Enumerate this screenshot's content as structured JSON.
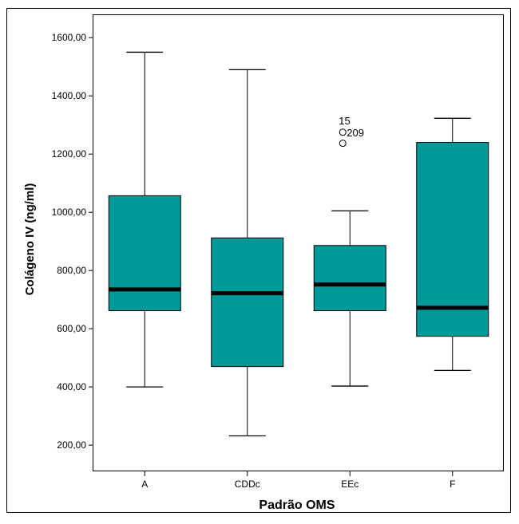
{
  "chart_data": {
    "type": "boxplot",
    "title": "",
    "xlabel": "Padrão OMS",
    "ylabel": "Colágeno IV (ng/ml)",
    "ylim": [
      110,
      1680
    ],
    "yticks": [
      200,
      400,
      600,
      800,
      1000,
      1200,
      1400,
      1600
    ],
    "ytick_labels": [
      "200,00",
      "400,00",
      "600,00",
      "800,00",
      "1000,00",
      "1200,00",
      "1400,00",
      "1600,00"
    ],
    "grid": false,
    "box_color": "#009999",
    "categories": [
      "A",
      "CDDc",
      "EEc",
      "F"
    ],
    "boxes": [
      {
        "category": "A",
        "whisker_low": 400,
        "q1": 662,
        "median": 735,
        "q3": 1057,
        "whisker_high": 1550
      },
      {
        "category": "CDDc",
        "whisker_low": 232,
        "q1": 470,
        "median": 722,
        "q3": 912,
        "whisker_high": 1490
      },
      {
        "category": "EEc",
        "whisker_low": 403,
        "q1": 662,
        "median": 752,
        "q3": 886,
        "whisker_high": 1005,
        "outliers": [
          {
            "value": 1275,
            "label": "209"
          },
          {
            "value": 1237,
            "label": ""
          }
        ],
        "outlier_labels_extra": [
          {
            "label": "15"
          }
        ]
      },
      {
        "category": "F",
        "whisker_low": 457,
        "q1": 574,
        "median": 672,
        "q3": 1240,
        "whisker_high": 1323
      }
    ]
  }
}
